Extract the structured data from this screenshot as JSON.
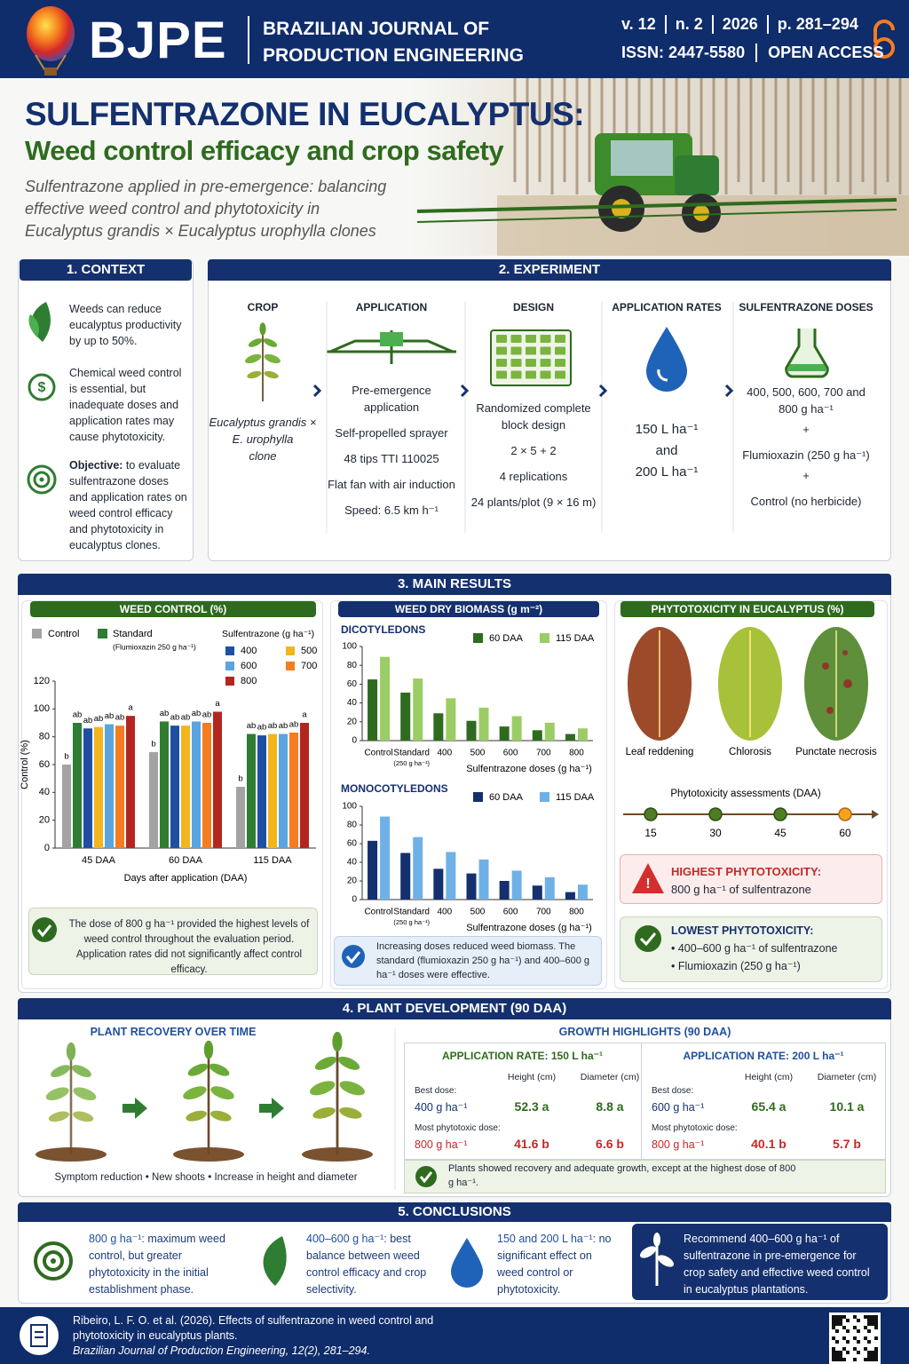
{
  "header": {
    "brand": "BJPE",
    "journal": [
      "BRAZILIAN JOURNAL OF",
      "PRODUCTION ENGINEERING"
    ],
    "meta": [
      "v. 12",
      "n. 2",
      "2026",
      "p. 281–294"
    ],
    "issn": "ISSN: 2447-5580",
    "access": "OPEN ACCESS"
  },
  "title": {
    "main": "SULFENTRAZONE IN EUCALYPTUS:",
    "sub": "Weed control efficacy and crop safety",
    "lead": [
      "Sulfentrazone applied in pre-emergence: balancing",
      "effective weed control and phytotoxicity in",
      "Eucalyptus grandis × Eucalyptus urophylla clones"
    ]
  },
  "context": {
    "heading": "1. CONTEXT",
    "items": [
      {
        "text": "Weeds can reduce eucalyptus productivity by up to 50%."
      },
      {
        "text": "Chemical weed control is essential, but inadequate doses and application rates may cause phytotoxicity."
      },
      {
        "label": "Objective:",
        "text": "to evaluate sulfentrazone doses and application rates on weed control efficacy and phytotoxicity in eucalyptus clones."
      }
    ]
  },
  "experiment": {
    "heading": "2. EXPERIMENT",
    "columns": [
      {
        "title": "CROP",
        "lines": [
          "Eucalyptus grandis ×",
          "E. urophylla",
          "clone"
        ]
      },
      {
        "title": "APPLICATION",
        "lines": [
          "Pre-emergence application",
          "Self-propelled sprayer",
          "48 tips TTI 110025",
          "Flat fan with air induction",
          "Speed: 6.5 km h⁻¹"
        ]
      },
      {
        "title": "DESIGN",
        "lines": [
          "Randomized complete block design",
          "2 × 5 + 2",
          "4 replications",
          "24 plants/plot (9 × 16 m)"
        ]
      },
      {
        "title": "APPLICATION RATES",
        "lines": [
          "150 L ha⁻¹",
          "and",
          "200 L ha⁻¹"
        ]
      },
      {
        "title": "SULFENTRAZONE DOSES",
        "lines": [
          "400, 500, 600, 700 and 800 g ha⁻¹",
          "+",
          "Flumioxazin (250 g ha⁻¹)",
          "+",
          "Control (no herbicide)"
        ]
      }
    ]
  },
  "results": {
    "heading": "3. MAIN RESULTS",
    "weed_control": {
      "type": "bar",
      "title": "WEED CONTROL (%)",
      "ylabel": "Control (%)",
      "xlabel": "Days after application (DAA)",
      "categories": [
        "45 DAA",
        "60 DAA",
        "115 DAA"
      ],
      "ylim": [
        0,
        120
      ],
      "yticks": [
        0,
        20,
        40,
        60,
        80,
        100,
        120
      ],
      "legend_group": "Sulfentrazone (g ha⁻¹)",
      "series": [
        {
          "name": "Control",
          "color": "#a3a3a3",
          "values": [
            60,
            69,
            44
          ],
          "letters": [
            "b",
            "b",
            "b"
          ]
        },
        {
          "name": "Standard",
          "note": "(Flumioxazin 250 g ha⁻¹)",
          "color": "#2e7d32",
          "values": [
            90,
            91,
            82
          ],
          "letters": [
            "ab",
            "ab",
            "ab"
          ]
        },
        {
          "name": "400",
          "color": "#1f4fa3",
          "values": [
            86,
            88,
            81
          ],
          "letters": [
            "ab",
            "ab",
            "ab"
          ]
        },
        {
          "name": "500",
          "color": "#f2b51c",
          "values": [
            87,
            88,
            82
          ],
          "letters": [
            "ab",
            "ab",
            "ab"
          ]
        },
        {
          "name": "600",
          "color": "#5aa4e0",
          "values": [
            89,
            91,
            82
          ],
          "letters": [
            "ab",
            "ab",
            "ab"
          ]
        },
        {
          "name": "700",
          "color": "#f57c1f",
          "values": [
            88,
            90,
            83
          ],
          "letters": [
            "ab",
            "ab",
            "ab"
          ]
        },
        {
          "name": "800",
          "color": "#b3261e",
          "values": [
            95,
            98,
            90
          ],
          "letters": [
            "a",
            "a",
            "a"
          ]
        }
      ]
    },
    "weed_control_note": "The dose of 800 g ha⁻¹ provided the highest levels of weed control throughout the evaluation period. Application rates did not significantly affect control efficacy.",
    "biomass": {
      "title": "WEED DRY BIOMASS (g m⁻²)",
      "standard_note": "(250 g ha⁻¹)",
      "charts": [
        {
          "type": "bar",
          "title": "DICOTYLEDONS",
          "xlabel": "Sulfentrazone doses (g ha⁻¹)",
          "categories": [
            "Control",
            "Standard",
            "400",
            "500",
            "600",
            "700",
            "800"
          ],
          "ylim": [
            0,
            100
          ],
          "yticks": [
            0,
            20,
            40,
            60,
            80,
            100
          ],
          "series": [
            {
              "name": "60 DAA",
              "color": "#2e6b1e",
              "values": [
                65,
                51,
                29,
                21,
                15,
                11,
                7
              ]
            },
            {
              "name": "115 DAA",
              "color": "#9ccc65",
              "values": [
                89,
                66,
                45,
                35,
                26,
                19,
                13
              ]
            }
          ]
        },
        {
          "type": "bar",
          "title": "MONOCOTYLEDONS",
          "xlabel": "Sulfentrazone doses (g ha⁻¹)",
          "categories": [
            "Control",
            "Standard",
            "400",
            "500",
            "600",
            "700",
            "800"
          ],
          "ylim": [
            0,
            100
          ],
          "yticks": [
            0,
            20,
            40,
            60,
            80,
            100
          ],
          "series": [
            {
              "name": "60 DAA",
              "color": "#14306e",
              "values": [
                63,
                50,
                33,
                28,
                20,
                15,
                8
              ]
            },
            {
              "name": "115 DAA",
              "color": "#6fb1e6",
              "values": [
                89,
                67,
                51,
                43,
                31,
                24,
                16
              ]
            }
          ]
        }
      ]
    },
    "biomass_note": "Increasing doses reduced weed biomass. The standard (flumioxazin 250 g ha⁻¹) and 400–600 g ha⁻¹ doses were effective.",
    "phyto": {
      "title": "PHYTOTOXICITY IN EUCALYPTUS (%)",
      "symptoms": [
        "Leaf reddening",
        "Chlorosis",
        "Punctate necrosis"
      ],
      "timeline_title": "Phytotoxicity assessments (DAA)",
      "timeline": [
        15,
        30,
        45,
        60
      ],
      "highest": {
        "heading": "HIGHEST PHYTOTOXICITY:",
        "text": "800 g ha⁻¹ of sulfentrazone"
      },
      "lowest": {
        "heading": "LOWEST PHYTOTOXICITY:",
        "items": [
          "400–600 g ha⁻¹ of sulfentrazone",
          "Flumioxazin (250 g ha⁻¹)"
        ]
      }
    }
  },
  "development": {
    "heading": "4. PLANT DEVELOPMENT (90 DAA)",
    "recovery_title": "PLANT RECOVERY OVER TIME",
    "recovery_steps": [
      "Symptom reduction",
      "New shoots",
      "Increase in height and diameter"
    ],
    "growth_title": "GROWTH HIGHLIGHTS (90 DAA)",
    "columns": [
      "Height (cm)",
      "Diameter (cm)"
    ],
    "tables": [
      {
        "heading": "APPLICATION RATE: 150 L ha⁻¹",
        "rows": [
          {
            "label": "Best dose:",
            "dose": "400 g ha⁻¹",
            "height": "52.3 a",
            "diameter": "8.8 a"
          },
          {
            "label": "Most phytotoxic dose:",
            "dose": "800 g ha⁻¹",
            "height": "41.6 b",
            "diameter": "6.6 b"
          }
        ]
      },
      {
        "heading": "APPLICATION RATE: 200 L ha⁻¹",
        "rows": [
          {
            "label": "Best dose:",
            "dose": "600 g ha⁻¹",
            "height": "65.4 a",
            "diameter": "10.1 a"
          },
          {
            "label": "Most phytotoxic dose:",
            "dose": "800 g ha⁻¹",
            "height": "40.1 b",
            "diameter": "5.7 b"
          }
        ]
      }
    ],
    "note": "Plants showed recovery and adequate growth, except at the highest dose of 800 g ha⁻¹."
  },
  "conclusions": {
    "heading": "5. CONCLUSIONS",
    "items": [
      {
        "highlight": "800 g ha⁻¹:",
        "text": "maximum weed control, but greater phytotoxicity in the initial establishment phase."
      },
      {
        "highlight": "400–600 g ha⁻¹:",
        "text": "best balance between weed control efficacy and crop selectivity."
      },
      {
        "highlight": "150 and 200 L ha⁻¹:",
        "text": "no significant effect on weed control or phytotoxicity."
      }
    ],
    "recommendation": "Recommend 400–600 g ha⁻¹ of sulfentrazone in pre-emergence for crop safety and effective weed control in eucalyptus plantations."
  },
  "footer": {
    "citation": "Ribeiro, L. F. O. et al. (2026). Effects of sulfentrazone in weed control and phytotoxicity in eucalyptus plants.",
    "journal": "Brazilian Journal of Production Engineering, 12(2), 281–294."
  }
}
